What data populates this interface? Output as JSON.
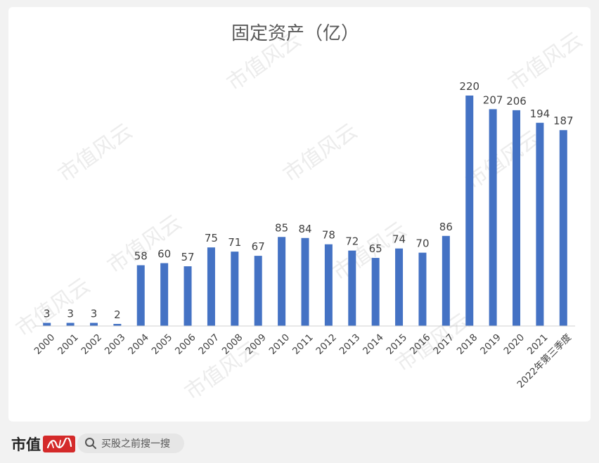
{
  "chart_data": {
    "type": "bar",
    "title": "固定资产（亿）",
    "categories": [
      "2000",
      "2001",
      "2002",
      "2003",
      "2004",
      "2005",
      "2006",
      "2007",
      "2008",
      "2009",
      "2010",
      "2011",
      "2012",
      "2013",
      "2014",
      "2015",
      "2016",
      "2017",
      "2018",
      "2019",
      "2020",
      "2021",
      "2022年第三季度"
    ],
    "series": [
      {
        "values": [
          3,
          3,
          3,
          2,
          58,
          60,
          57,
          75,
          71,
          67,
          85,
          84,
          78,
          72,
          65,
          74,
          70,
          86,
          220,
          207,
          206,
          194,
          187
        ]
      }
    ],
    "ylim": [
      0,
      220
    ],
    "grid": false,
    "legend": "none",
    "data_labels": true,
    "bar_color": "#4472c4"
  },
  "watermark": "市值风云",
  "footer": {
    "brand": "市值",
    "search_placeholder": "买股之前搜一搜",
    "brand_color": "#d42a2a"
  }
}
